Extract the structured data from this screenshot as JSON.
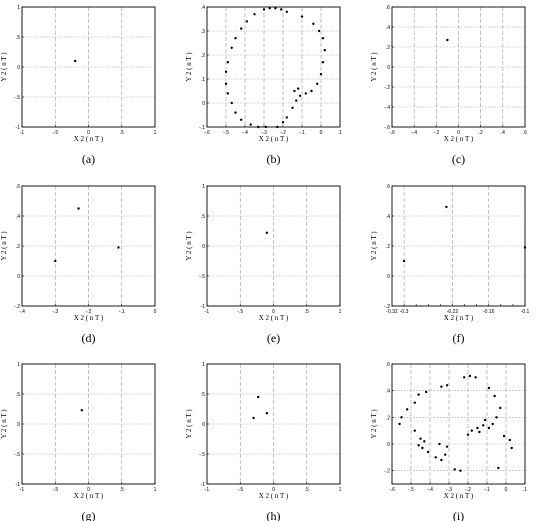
{
  "chart_data": [
    {
      "id": "a",
      "type": "scatter",
      "panel_label": "(a)",
      "xlabel": "X 2 ( n T )",
      "ylabel": "Y 2 ( n T )",
      "xlim": [
        -1,
        1
      ],
      "ylim": [
        -1,
        1
      ],
      "xticks": [
        -1,
        -0.5,
        0,
        0.5,
        1
      ],
      "yticks": [
        -1,
        -0.5,
        0,
        0.5,
        1
      ],
      "grid": true,
      "points": [
        [
          -0.2,
          0.1
        ]
      ]
    },
    {
      "id": "b",
      "type": "scatter",
      "panel_label": "(b)",
      "xlabel": "X 2 ( n T )",
      "ylabel": "Y 2 ( n T )",
      "xlim": [
        -0.6,
        0.1
      ],
      "ylim": [
        -0.1,
        0.4
      ],
      "xticks": [
        -0.6,
        -0.5,
        -0.4,
        -0.3,
        -0.2,
        -0.1,
        0,
        0.1
      ],
      "yticks": [
        -0.1,
        0,
        0.1,
        0.2,
        0.3,
        0.4
      ],
      "grid": true,
      "points": [
        [
          -0.3,
          0.39
        ],
        [
          -0.27,
          0.395
        ],
        [
          -0.24,
          0.395
        ],
        [
          -0.21,
          0.39
        ],
        [
          -0.18,
          0.38
        ],
        [
          -0.35,
          0.37
        ],
        [
          -0.39,
          0.34
        ],
        [
          -0.42,
          0.31
        ],
        [
          -0.45,
          0.27
        ],
        [
          -0.47,
          0.23
        ],
        [
          -0.49,
          0.17
        ],
        [
          -0.5,
          0.13
        ],
        [
          -0.5,
          0.08
        ],
        [
          -0.49,
          0.04
        ],
        [
          -0.47,
          0.0
        ],
        [
          -0.45,
          -0.04
        ],
        [
          -0.42,
          -0.07
        ],
        [
          -0.37,
          -0.09
        ],
        [
          -0.33,
          -0.1
        ],
        [
          -0.29,
          -0.1
        ],
        [
          -0.23,
          -0.1
        ],
        [
          -0.2,
          -0.08
        ],
        [
          -0.18,
          -0.06
        ],
        [
          -0.15,
          -0.02
        ],
        [
          -0.13,
          0.01
        ],
        [
          -0.14,
          0.05
        ],
        [
          -0.12,
          0.06
        ],
        [
          -0.11,
          0.03
        ],
        [
          -0.08,
          0.04
        ],
        [
          -0.05,
          0.05
        ],
        [
          -0.02,
          0.08
        ],
        [
          0.0,
          0.12
        ],
        [
          0.01,
          0.17
        ],
        [
          0.02,
          0.22
        ],
        [
          0.01,
          0.27
        ],
        [
          -0.01,
          0.3
        ],
        [
          -0.04,
          0.33
        ],
        [
          -0.1,
          0.36
        ]
      ]
    },
    {
      "id": "c",
      "type": "scatter",
      "panel_label": "(c)",
      "xlabel": "X 2 ( n T )",
      "ylabel": "Y 2 ( n T )",
      "xlim": [
        -0.6,
        0.6
      ],
      "ylim": [
        -0.6,
        0.6
      ],
      "xticks": [
        -0.6,
        -0.4,
        -0.2,
        0,
        0.2,
        0.4,
        0.6
      ],
      "yticks": [
        -0.6,
        -0.4,
        -0.2,
        0,
        0.2,
        0.4,
        0.6
      ],
      "grid": true,
      "points": [
        [
          -0.1,
          0.27
        ]
      ]
    },
    {
      "id": "d",
      "type": "scatter",
      "panel_label": "(d)",
      "xlabel": "X 2 ( n T )",
      "ylabel": "Y 2 ( n T )",
      "xlim": [
        -0.4,
        0
      ],
      "ylim": [
        -0.2,
        0.6
      ],
      "xticks": [
        -0.4,
        -0.3,
        -0.2,
        -0.1,
        0
      ],
      "yticks": [
        -0.2,
        0,
        0.2,
        0.4,
        0.6
      ],
      "grid": true,
      "points": [
        [
          -0.3,
          0.1
        ],
        [
          -0.23,
          0.45
        ],
        [
          -0.11,
          0.19
        ]
      ]
    },
    {
      "id": "e",
      "type": "scatter",
      "panel_label": "(e)",
      "xlabel": "X 2 ( n T )",
      "ylabel": "Y 2 ( n T )",
      "xlim": [
        -1,
        1
      ],
      "ylim": [
        -1,
        1
      ],
      "xticks": [
        -1,
        -0.5,
        0,
        0.5,
        1
      ],
      "yticks": [
        -1,
        -0.5,
        0,
        0.5,
        1
      ],
      "grid": true,
      "points": [
        [
          -0.1,
          0.22
        ]
      ]
    },
    {
      "id": "f",
      "type": "scatter",
      "panel_label": "(f)",
      "xlabel": "X 2 ( n T )",
      "ylabel": "Y 2 ( n T )",
      "xlim": [
        -0.32,
        -0.1
      ],
      "ylim": [
        -0.2,
        0.6
      ],
      "xticks": [
        -0.32,
        -0.3,
        -0.28,
        -0.26,
        -0.24,
        -0.22,
        -0.2,
        -0.18,
        -0.16,
        -0.14,
        -0.12,
        -0.1
      ],
      "xtick_labels": [
        "-0.32",
        "-0.3",
        "",
        "",
        "",
        "-0.22",
        "",
        "",
        "-0.16",
        "",
        "",
        "-0.1"
      ],
      "yticks": [
        -0.2,
        0,
        0.2,
        0.4,
        0.6
      ],
      "grid": true,
      "points": [
        [
          -0.3,
          0.1
        ],
        [
          -0.23,
          0.46
        ],
        [
          -0.1,
          0.19
        ]
      ]
    },
    {
      "id": "g",
      "type": "scatter",
      "panel_label": "(g)",
      "xlabel": "X 2 ( n T )",
      "ylabel": "Y 2 ( n T )",
      "xlim": [
        -1,
        1
      ],
      "ylim": [
        -1,
        1
      ],
      "xticks": [
        -1,
        -0.5,
        0,
        0.5,
        1
      ],
      "yticks": [
        -1,
        -0.5,
        0,
        0.5,
        1
      ],
      "grid": true,
      "points": [
        [
          -0.1,
          0.23
        ]
      ]
    },
    {
      "id": "h",
      "type": "scatter",
      "panel_label": "(h)",
      "xlabel": "X 2 ( n T )",
      "ylabel": "Y 2 ( n T )",
      "xlim": [
        -1,
        1
      ],
      "ylim": [
        -1,
        1
      ],
      "xticks": [
        -1,
        -0.5,
        0,
        0.5,
        1
      ],
      "yticks": [
        -1,
        -0.5,
        0,
        0.5,
        1
      ],
      "grid": true,
      "points": [
        [
          -0.3,
          0.1
        ],
        [
          -0.23,
          0.45
        ],
        [
          -0.1,
          0.18
        ]
      ]
    },
    {
      "id": "i",
      "type": "scatter",
      "panel_label": "(i)",
      "xlabel": "X 2 ( n T )",
      "ylabel": "Y 2 ( n T )",
      "xlim": [
        -0.6,
        0.1
      ],
      "ylim": [
        -0.3,
        0.6
      ],
      "xticks": [
        -0.6,
        -0.5,
        -0.4,
        -0.3,
        -0.2,
        -0.1,
        0,
        0.1
      ],
      "yticks": [
        -0.2,
        0,
        0.2,
        0.4,
        0.6
      ],
      "grid": true,
      "points": [
        [
          -0.22,
          0.5
        ],
        [
          -0.19,
          0.51
        ],
        [
          -0.16,
          0.5
        ],
        [
          -0.34,
          0.43
        ],
        [
          -0.31,
          0.44
        ],
        [
          -0.42,
          0.39
        ],
        [
          -0.46,
          0.37
        ],
        [
          -0.48,
          0.31
        ],
        [
          -0.52,
          0.26
        ],
        [
          -0.55,
          0.2
        ],
        [
          -0.56,
          0.15
        ],
        [
          -0.48,
          0.1
        ],
        [
          -0.45,
          0.04
        ],
        [
          -0.43,
          0.02
        ],
        [
          -0.46,
          -0.01
        ],
        [
          -0.44,
          -0.03
        ],
        [
          -0.41,
          -0.06
        ],
        [
          -0.37,
          -0.1
        ],
        [
          -0.34,
          -0.12
        ],
        [
          -0.32,
          -0.08
        ],
        [
          -0.27,
          -0.19
        ],
        [
          -0.24,
          -0.2
        ],
        [
          -0.2,
          0.07
        ],
        [
          -0.18,
          0.1
        ],
        [
          -0.15,
          0.12
        ],
        [
          -0.12,
          0.14
        ],
        [
          -0.09,
          0.12
        ],
        [
          -0.07,
          0.15
        ],
        [
          -0.05,
          0.2
        ],
        [
          -0.03,
          0.27
        ],
        [
          -0.06,
          0.36
        ],
        [
          -0.09,
          0.42
        ],
        [
          -0.04,
          -0.18
        ],
        [
          -0.01,
          0.06
        ],
        [
          0.02,
          0.03
        ],
        [
          0.03,
          -0.03
        ],
        [
          -0.14,
          0.09
        ],
        [
          -0.11,
          0.18
        ],
        [
          -0.35,
          0.0
        ],
        [
          -0.31,
          -0.02
        ]
      ]
    }
  ]
}
